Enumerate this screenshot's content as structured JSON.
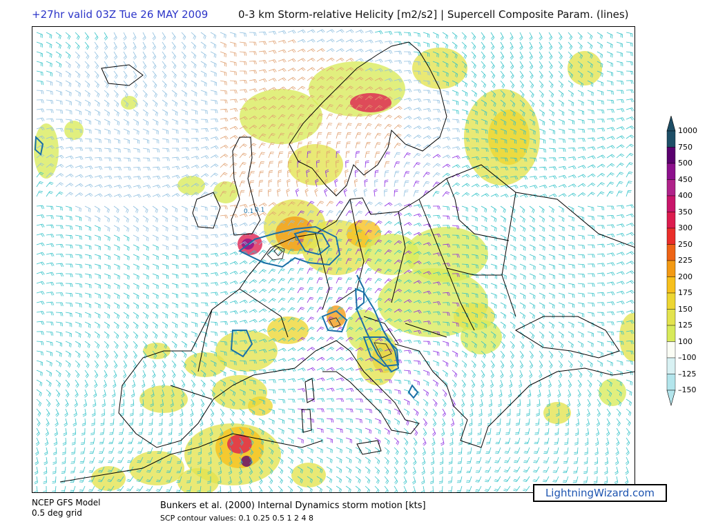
{
  "header": {
    "run_info": "+27hr valid 03Z Tue 26 MAY 2009",
    "product": "0-3 km Storm-relative Helicity [m2/s2] | Supercell Composite Param. (lines)"
  },
  "legend": {
    "levels": [
      "1000",
      "750",
      "500",
      "450",
      "400",
      "350",
      "300",
      "250",
      "225",
      "200",
      "175",
      "150",
      "125",
      "100",
      "–100",
      "–125",
      "–150"
    ],
    "colors": [
      "#1d4e66",
      "#5a006e",
      "#8c108c",
      "#b0228a",
      "#c8156a",
      "#dc1c4e",
      "#ea2e2a",
      "#ee6416",
      "#f39a14",
      "#f7c01c",
      "#edd632",
      "#e3e34e",
      "#d8ea5a",
      "#fbfdf5",
      "#d8f1f3",
      "#b3e5ec"
    ]
  },
  "map": {
    "contour_labels": [
      "0.1",
      "0.1",
      "0"
    ],
    "colors": {
      "coast": "#000000",
      "scp_contour": "#1a6fa6",
      "barb_strong": "#32c2c8",
      "barb_mid": "#8fbfe0",
      "barb_weak": "#8a2be2"
    }
  },
  "footer": {
    "model": "NCEP GFS Model",
    "grid": "0.5 deg grid",
    "storm_motion": "Bunkers et al. (2000) Internal Dynamics storm motion [kts]",
    "scp_values": "SCP contour values: 0.1 0.25 0.5 1 2 4 8"
  },
  "brand": {
    "label": "LightningWizard.com"
  }
}
